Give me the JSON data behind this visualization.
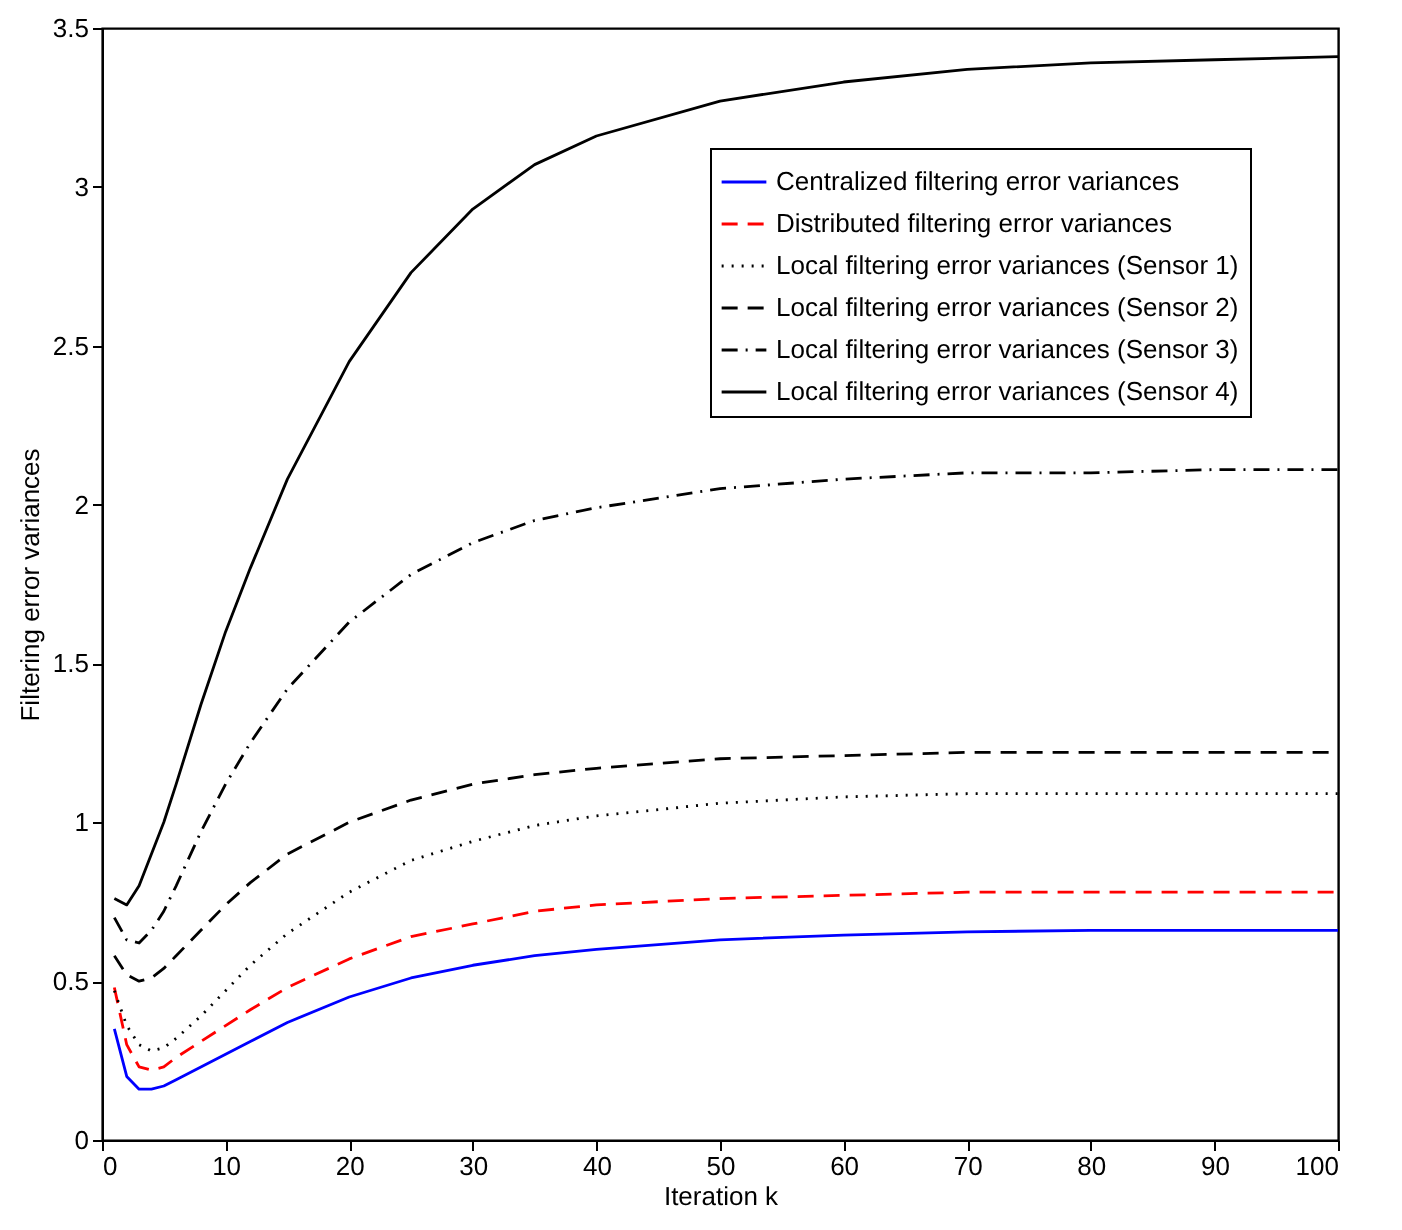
{
  "chart_data": {
    "type": "line",
    "xlabel": "Iteration k",
    "ylabel": "Filtering error variances",
    "xlim": [
      0,
      100
    ],
    "ylim": [
      0,
      3.5
    ],
    "xticks": [
      0,
      10,
      20,
      30,
      40,
      50,
      60,
      70,
      80,
      90,
      100
    ],
    "yticks": [
      0,
      0.5,
      1,
      1.5,
      2,
      2.5,
      3,
      3.5
    ],
    "legend": "top right",
    "grid": false,
    "x": [
      1,
      2,
      3,
      4,
      5,
      6,
      8,
      10,
      12,
      15,
      20,
      25,
      30,
      35,
      40,
      50,
      60,
      70,
      80,
      90,
      100
    ],
    "series": [
      {
        "name": "Centralized filtering  error variances",
        "color": "#0000ff",
        "line_style": "solid",
        "values": [
          0.35,
          0.2,
          0.16,
          0.16,
          0.17,
          0.19,
          0.23,
          0.27,
          0.31,
          0.37,
          0.45,
          0.51,
          0.55,
          0.58,
          0.6,
          0.63,
          0.645,
          0.655,
          0.66,
          0.66,
          0.66
        ]
      },
      {
        "name": "Distributed filtering  error variances",
        "color": "#ff0000",
        "line_style": "dashed",
        "values": [
          0.48,
          0.3,
          0.23,
          0.22,
          0.23,
          0.26,
          0.31,
          0.36,
          0.41,
          0.48,
          0.57,
          0.64,
          0.68,
          0.72,
          0.74,
          0.76,
          0.77,
          0.78,
          0.78,
          0.78,
          0.78
        ]
      },
      {
        "name": "Local filtering error variances (Sensor 1)",
        "color": "#000000",
        "line_style": "dotted",
        "values": [
          0.47,
          0.36,
          0.3,
          0.28,
          0.29,
          0.32,
          0.39,
          0.47,
          0.55,
          0.65,
          0.78,
          0.88,
          0.94,
          0.99,
          1.02,
          1.06,
          1.08,
          1.09,
          1.09,
          1.09,
          1.09
        ]
      },
      {
        "name": "Local filtering error variances (Sensor 2)",
        "color": "#000000",
        "line_style": "dashed",
        "values": [
          0.58,
          0.52,
          0.5,
          0.51,
          0.54,
          0.58,
          0.66,
          0.74,
          0.81,
          0.9,
          1.0,
          1.07,
          1.12,
          1.15,
          1.17,
          1.2,
          1.21,
          1.22,
          1.22,
          1.22,
          1.22
        ]
      },
      {
        "name": "Local filtering error variances (Sensor 3)",
        "color": "#000000",
        "line_style": "dashdot",
        "values": [
          0.7,
          0.63,
          0.62,
          0.66,
          0.72,
          0.8,
          0.97,
          1.12,
          1.25,
          1.42,
          1.63,
          1.78,
          1.88,
          1.95,
          1.99,
          2.05,
          2.08,
          2.1,
          2.1,
          2.11,
          2.11
        ]
      },
      {
        "name": "Local filtering error variances (Sensor 4)",
        "color": "#000000",
        "line_style": "solid",
        "values": [
          0.76,
          0.74,
          0.8,
          0.9,
          1.0,
          1.12,
          1.37,
          1.6,
          1.8,
          2.08,
          2.45,
          2.73,
          2.93,
          3.07,
          3.16,
          3.27,
          3.33,
          3.37,
          3.39,
          3.4,
          3.41
        ]
      }
    ]
  }
}
